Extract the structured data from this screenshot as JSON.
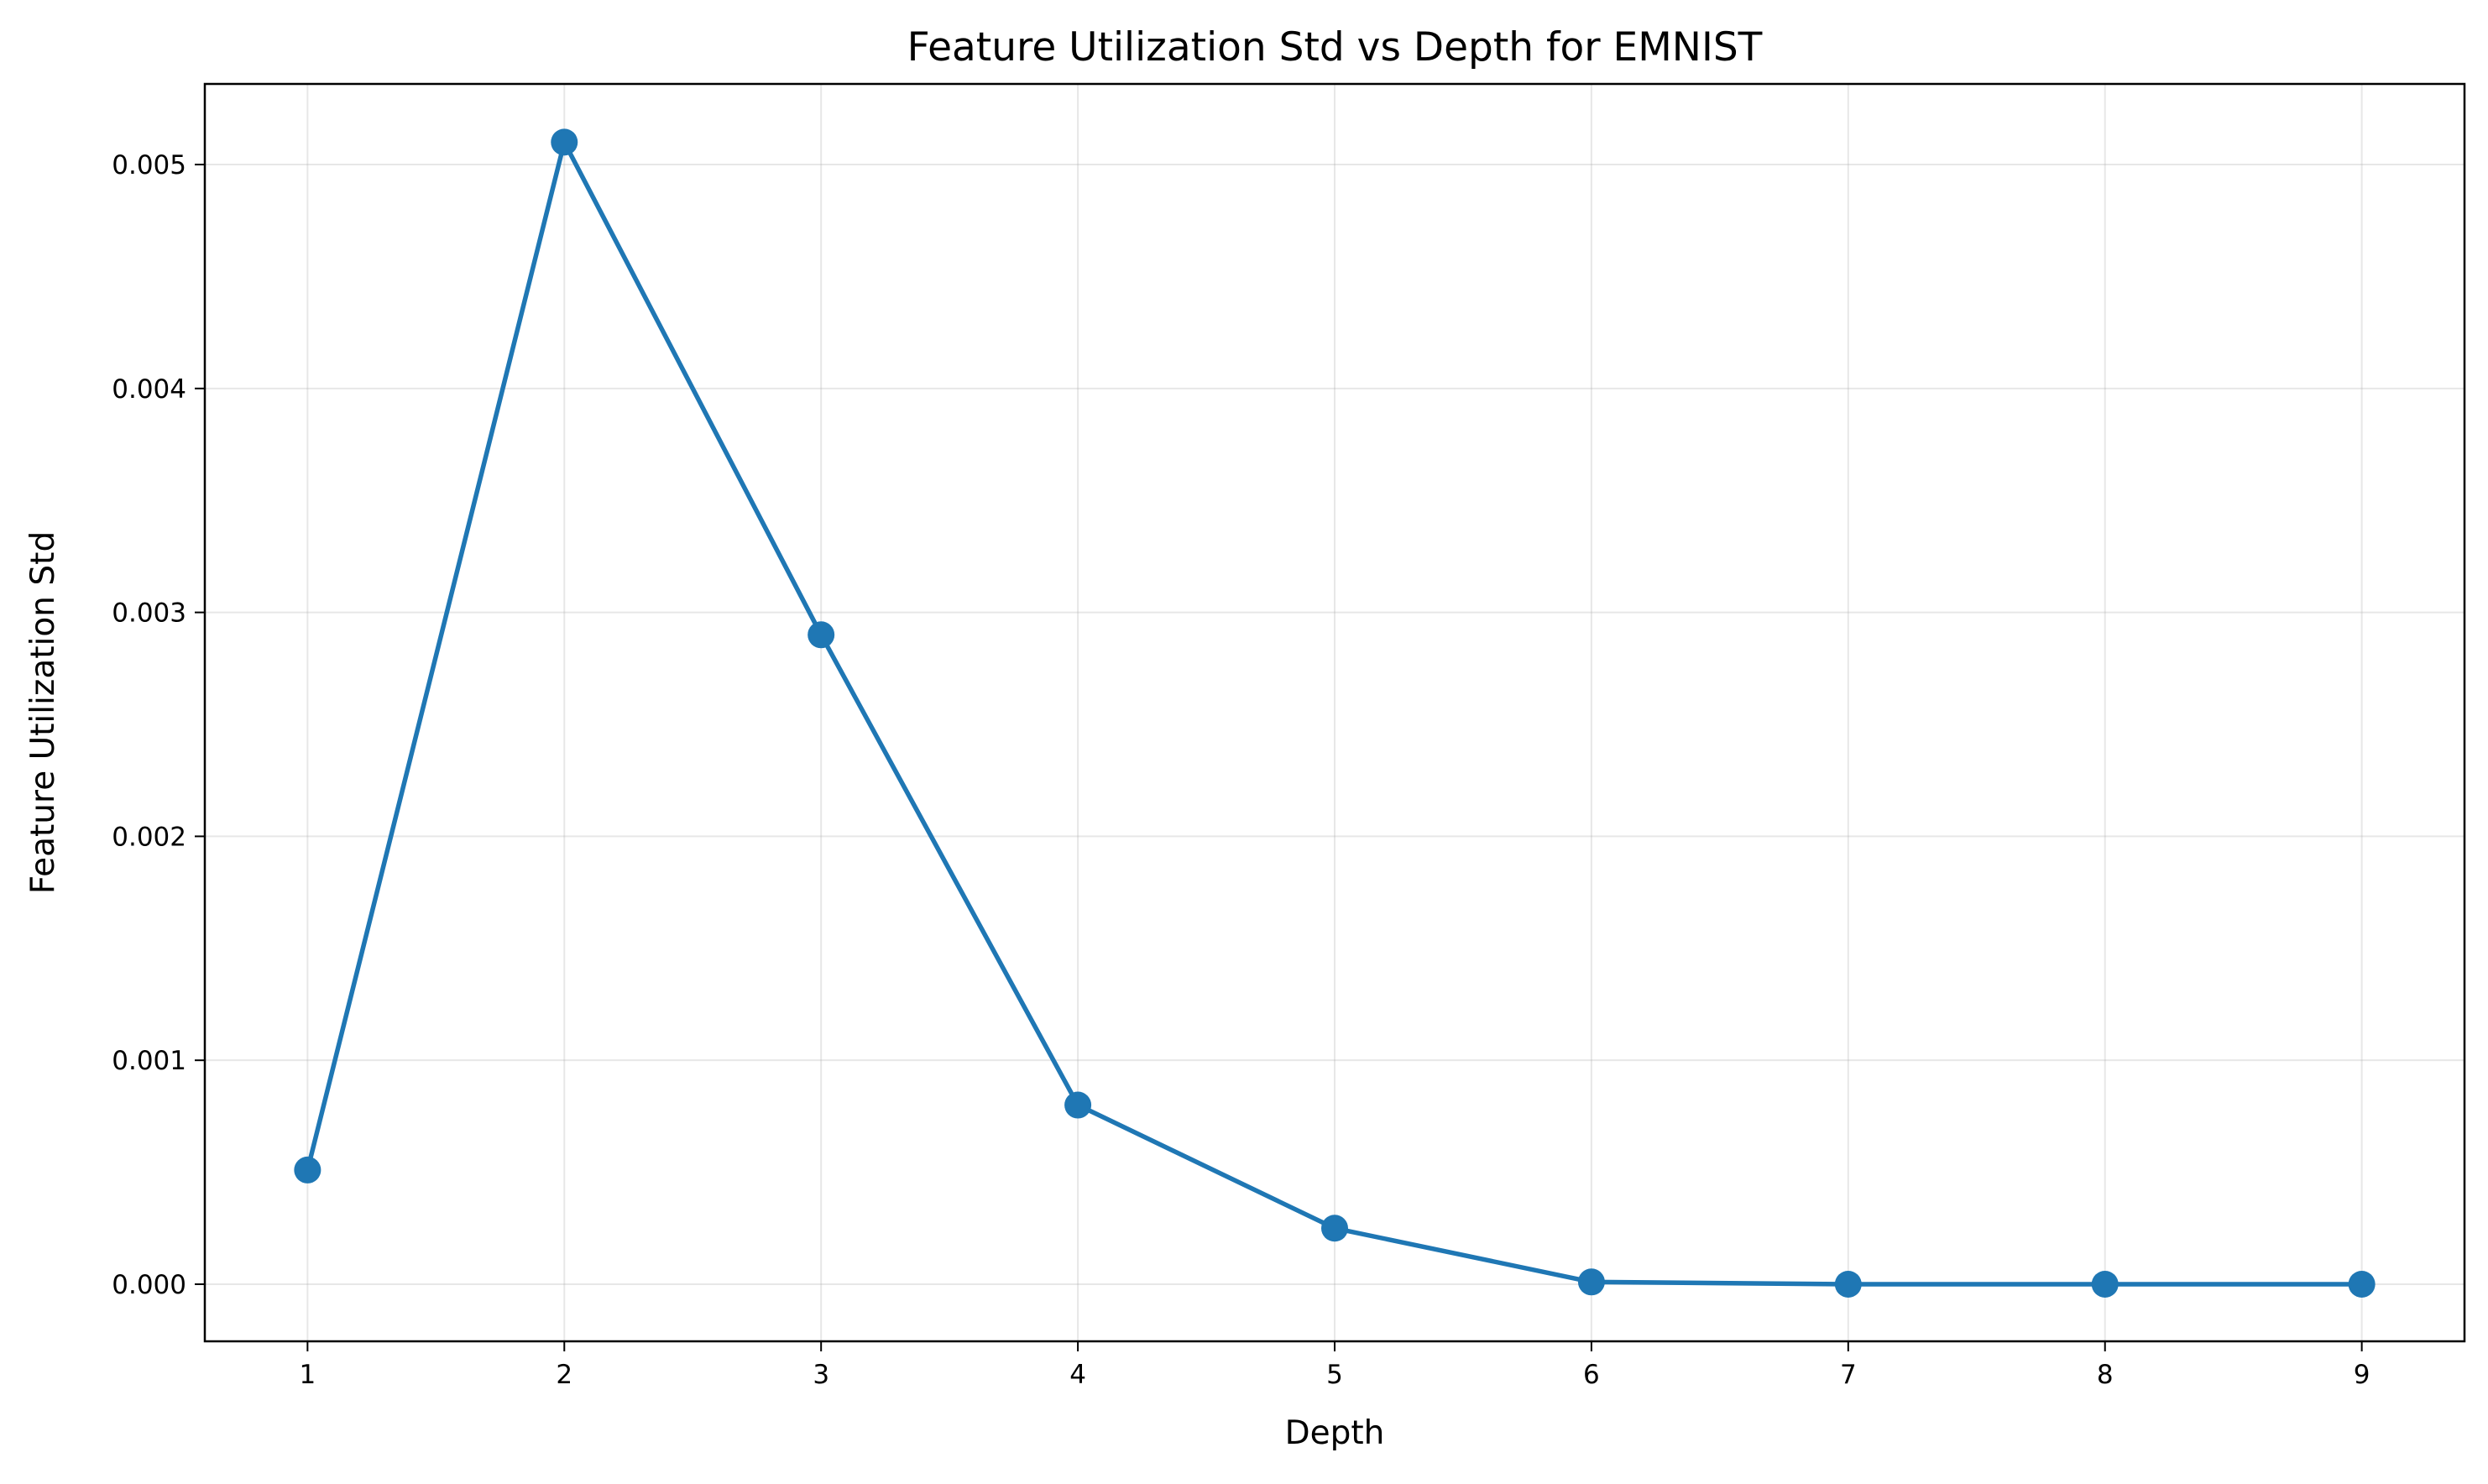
{
  "chart_data": {
    "type": "line",
    "title": "Feature Utilization Std vs Depth for EMNIST",
    "xlabel": "Depth",
    "ylabel": "Feature Utilization Std",
    "x": [
      1,
      2,
      3,
      4,
      5,
      6,
      7,
      8,
      9
    ],
    "series": [
      {
        "values": [
          0.00051,
          0.0051,
          0.0029,
          0.0008,
          0.00025,
          1e-05,
          0.0,
          0.0,
          0.0
        ]
      }
    ],
    "xticks": [
      "1",
      "2",
      "3",
      "4",
      "5",
      "6",
      "7",
      "8",
      "9"
    ],
    "yticks": [
      "0.000",
      "0.001",
      "0.002",
      "0.003",
      "0.004",
      "0.005"
    ],
    "xlim": [
      0.6,
      9.4
    ],
    "ylim": [
      -0.000255,
      0.00536
    ],
    "grid": true,
    "legend": "none",
    "marker": "circle",
    "color": "#1f77b4"
  }
}
